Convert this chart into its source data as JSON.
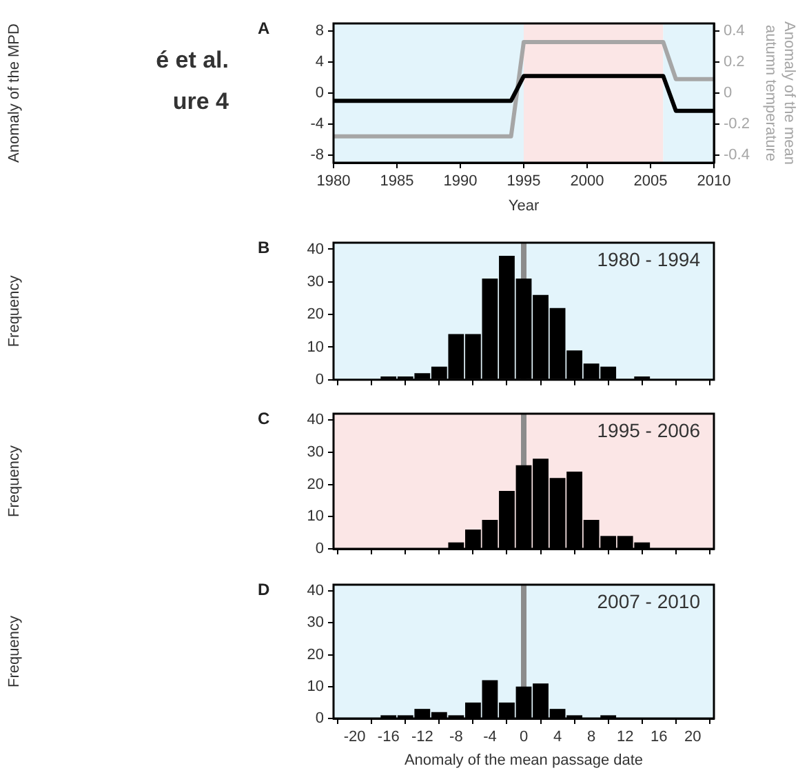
{
  "chart_data": [
    {
      "type": "line",
      "title": "A",
      "xlabel": "Year",
      "ylabel": "Anomaly of the MPD",
      "y2label": "Anomaly of the mean autumn temperature",
      "annotations": [
        "é et al.",
        "ure 4"
      ],
      "x": [
        1980,
        1994,
        1995,
        2006,
        2007,
        2010
      ],
      "series": [
        {
          "color": "#000000",
          "values": [
            -1,
            -1,
            2.2,
            2.2,
            -2.3,
            -2.3
          ]
        },
        {
          "color": "#a6a6a6",
          "axis": "y2",
          "values": [
            -0.28,
            -0.28,
            0.33,
            0.33,
            0.09,
            0.09
          ]
        }
      ],
      "xlim": [
        1980,
        2010
      ],
      "xticks": [
        1980,
        1985,
        1990,
        1995,
        2000,
        2005,
        2010
      ],
      "ylim": [
        -9,
        9
      ],
      "yticks": [
        -8,
        -4,
        0,
        4,
        8
      ],
      "y2lim": [
        -0.45,
        0.45
      ],
      "y2ticks": [
        -0.4,
        -0.2,
        0,
        0.2,
        0.4
      ],
      "bands": [
        {
          "axis": "x",
          "from": 1980,
          "to": 1995,
          "color": "#e3f4fb"
        },
        {
          "axis": "x",
          "from": 1995,
          "to": 2006,
          "color": "#fbe6e6"
        },
        {
          "axis": "x",
          "from": 2006,
          "to": 2010,
          "color": "#e3f4fb"
        }
      ],
      "marker": "none",
      "grid": false,
      "legend": false
    },
    {
      "type": "histogram",
      "title": "B",
      "ylabel": "Frequency",
      "annotations": [
        "1980 - 1994"
      ],
      "bins": [
        -21,
        -19,
        -17,
        -15,
        -13,
        -11,
        -9,
        -7,
        -5,
        -3,
        -1,
        1,
        3,
        5,
        7,
        9,
        11,
        13,
        15,
        17,
        19,
        21
      ],
      "values": [
        0,
        0,
        1,
        1,
        2,
        4,
        14,
        14,
        31,
        38,
        31,
        26,
        22,
        9,
        5,
        4,
        0,
        1,
        0,
        0,
        0
      ],
      "color": "#000000",
      "xlim": [
        -22.5,
        22.5
      ],
      "xticks": [
        -20,
        -16,
        -12,
        -8,
        -4,
        0,
        4,
        8,
        12,
        16,
        20
      ],
      "ylim": [
        0,
        42
      ],
      "yticks": [
        0,
        10,
        20,
        30,
        40
      ],
      "tick_labels": "y",
      "ref_lines": [
        {
          "axis": "x",
          "value": 0,
          "color": "#8c8c8c"
        }
      ],
      "bands": [
        {
          "axis": "x",
          "from": -22.5,
          "to": 22.5,
          "color": "#e3f4fb"
        }
      ],
      "grid": false,
      "legend": false
    },
    {
      "type": "histogram",
      "title": "C",
      "ylabel": "Frequency",
      "annotations": [
        "1995 - 2006"
      ],
      "bins": [
        -21,
        -19,
        -17,
        -15,
        -13,
        -11,
        -9,
        -7,
        -5,
        -3,
        -1,
        1,
        3,
        5,
        7,
        9,
        11,
        13,
        15,
        17,
        19,
        21
      ],
      "values": [
        0,
        0,
        0,
        0,
        0,
        0,
        2,
        6,
        9,
        18,
        26,
        28,
        22,
        24,
        9,
        4,
        4,
        2,
        0,
        0,
        0
      ],
      "color": "#000000",
      "xlim": [
        -22.5,
        22.5
      ],
      "xticks": [
        -20,
        -16,
        -12,
        -8,
        -4,
        0,
        4,
        8,
        12,
        16,
        20
      ],
      "ylim": [
        0,
        42
      ],
      "yticks": [
        0,
        10,
        20,
        30,
        40
      ],
      "tick_labels": "y",
      "ref_lines": [
        {
          "axis": "x",
          "value": 0,
          "color": "#8c8c8c"
        }
      ],
      "bands": [
        {
          "axis": "x",
          "from": -22.5,
          "to": 22.5,
          "color": "#fbe6e6"
        }
      ],
      "grid": false,
      "legend": false
    },
    {
      "type": "histogram",
      "title": "D",
      "ylabel": "Frequency",
      "xlabel": "Anomaly of the mean passage date",
      "annotations": [
        "2007 - 2010"
      ],
      "bins": [
        -21,
        -19,
        -17,
        -15,
        -13,
        -11,
        -9,
        -7,
        -5,
        -3,
        -1,
        1,
        3,
        5,
        7,
        9,
        11,
        13,
        15,
        17,
        19,
        21
      ],
      "values": [
        0,
        0,
        1,
        1,
        3,
        2,
        1,
        5,
        12,
        5,
        10,
        11,
        3,
        1,
        0,
        1,
        0,
        0,
        0,
        0,
        0
      ],
      "color": "#000000",
      "xlim": [
        -22.5,
        22.5
      ],
      "xticks": [
        -20,
        -16,
        -12,
        -8,
        -4,
        0,
        4,
        8,
        12,
        16,
        20
      ],
      "ylim": [
        0,
        42
      ],
      "yticks": [
        0,
        10,
        20,
        30,
        40
      ],
      "ref_lines": [
        {
          "axis": "x",
          "value": 0,
          "color": "#8c8c8c"
        }
      ],
      "bands": [
        {
          "axis": "x",
          "from": -22.5,
          "to": 22.5,
          "color": "#e3f4fb"
        }
      ],
      "grid": false,
      "legend": false
    }
  ]
}
